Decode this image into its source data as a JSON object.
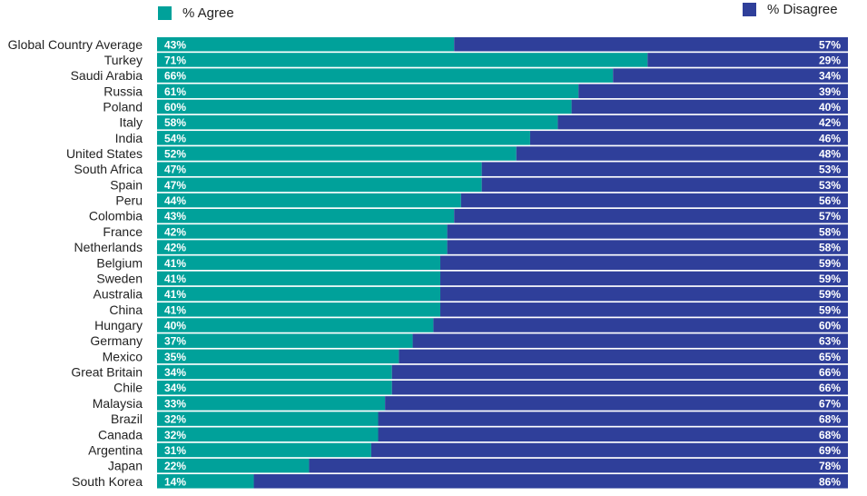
{
  "chart_data": {
    "type": "bar",
    "orientation": "horizontal",
    "stacked": true,
    "legend_position": "top",
    "xlim": [
      0,
      100
    ],
    "colors": {
      "agree": "#00a19a",
      "disagree": "#2f3f9a"
    },
    "legend": [
      {
        "key": "agree",
        "label": "% Agree"
      },
      {
        "key": "disagree",
        "label": "% Disagree"
      }
    ],
    "categories": [
      "Global Country Average",
      "Turkey",
      "Saudi Arabia",
      "Russia",
      "Poland",
      "Italy",
      "India",
      "United States",
      "South Africa",
      "Spain",
      "Peru",
      "Colombia",
      "France",
      "Netherlands",
      "Belgium",
      "Sweden",
      "Australia",
      "China",
      "Hungary",
      "Germany",
      "Mexico",
      "Great Britain",
      "Chile",
      "Malaysia",
      "Brazil",
      "Canada",
      "Argentina",
      "Japan",
      "South Korea"
    ],
    "series": [
      {
        "name": "% Agree",
        "values": [
          43,
          71,
          66,
          61,
          60,
          58,
          54,
          52,
          47,
          47,
          44,
          43,
          42,
          42,
          41,
          41,
          41,
          41,
          40,
          37,
          35,
          34,
          34,
          33,
          32,
          32,
          31,
          22,
          14
        ],
        "labels": [
          "43%",
          "71%",
          "66%",
          "61%",
          "60%",
          "58%",
          "54%",
          "52%",
          "47%",
          "47%",
          "44%",
          "43%",
          "42%",
          "42%",
          "41%",
          "41%",
          "41%",
          "41%",
          "40%",
          "37%",
          "35%",
          "34%",
          "34%",
          "33%",
          "32%",
          "32%",
          "31%",
          "22%",
          "14%"
        ]
      },
      {
        "name": "% Disagree",
        "values": [
          57,
          29,
          34,
          39,
          40,
          42,
          46,
          48,
          53,
          53,
          56,
          57,
          58,
          58,
          59,
          59,
          59,
          59,
          60,
          63,
          65,
          66,
          66,
          67,
          68,
          68,
          69,
          78,
          86
        ],
        "labels": [
          "57%",
          "29%",
          "34%",
          "39%",
          "40%",
          "42%",
          "46%",
          "48%",
          "53%",
          "53%",
          "56%",
          "57%",
          "58%",
          "58%",
          "59%",
          "59%",
          "59%",
          "59%",
          "60%",
          "63%",
          "65%",
          "66%",
          "66%",
          "67%",
          "68%",
          "68%",
          "69%",
          "78%",
          "86%"
        ]
      }
    ]
  }
}
